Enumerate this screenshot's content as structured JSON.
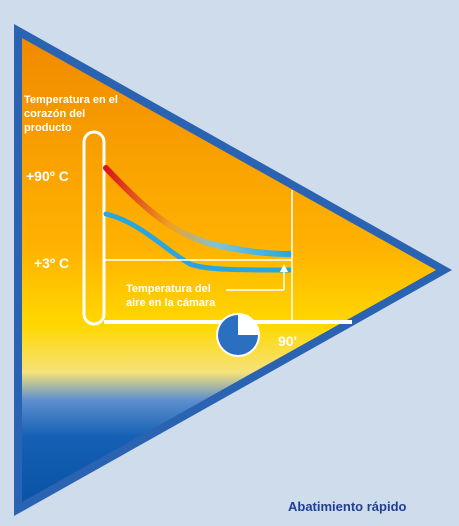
{
  "diagram": {
    "core_label_lines": [
      "Temperatura en el",
      "corazón del",
      "producto"
    ],
    "temp_high": "+90º C",
    "temp_low": "+3º C",
    "air_label_lines": [
      "Temperatura del",
      "aire en la cámara"
    ],
    "time_label": "90'",
    "caption": "Abatimiento rápido",
    "colors": {
      "background": "#cfdceb",
      "triangle_border": "#2b63b3",
      "gradient_top": "#f39000",
      "gradient_mid": "#ffd600",
      "lower_blue": "#0b57aa",
      "curve_core_hot": "#e3201b",
      "curve_air": "#2aa6df",
      "caption": "#1f3f96"
    },
    "icons": [
      "thermometer-icon",
      "clock-icon"
    ]
  }
}
